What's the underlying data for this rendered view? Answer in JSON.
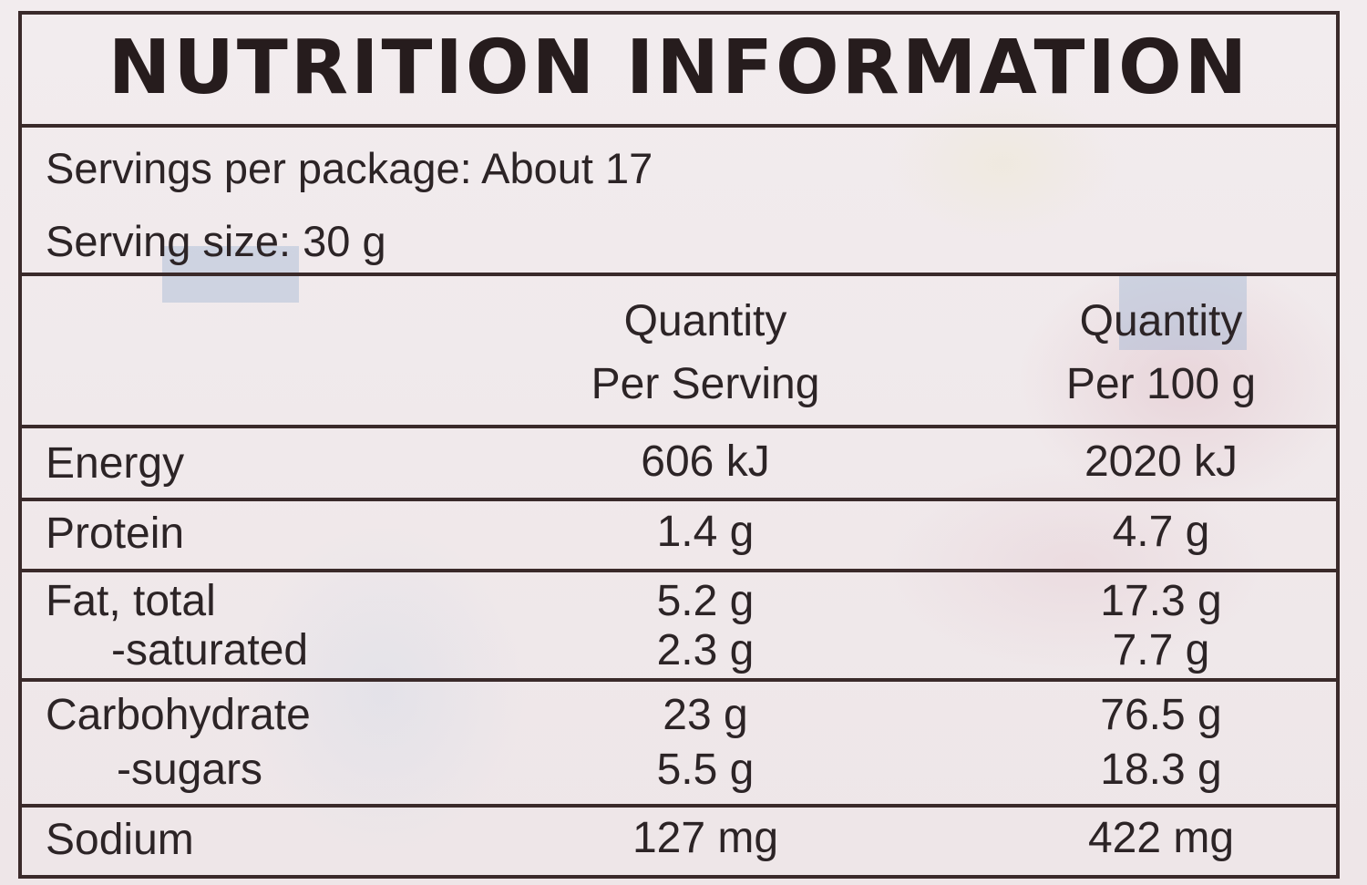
{
  "title": "NUTRITION INFORMATION",
  "servings_per_package": "Servings per package: About 17",
  "serving_size": "Serving size: 30 g",
  "columns": {
    "per_serving": [
      "Quantity",
      "Per Serving"
    ],
    "per_100g": [
      "Quantity",
      "Per 100 g"
    ]
  },
  "rows": [
    {
      "label": "Energy",
      "per_serving": "606 kJ",
      "per_100g": "2020 kJ"
    },
    {
      "label": "Protein",
      "per_serving": "1.4 g",
      "per_100g": "4.7 g"
    },
    {
      "label": "Fat, total",
      "per_serving": "5.2 g",
      "per_100g": "17.3 g"
    },
    {
      "label": "-saturated",
      "per_serving": "2.3 g",
      "per_100g": "7.7 g"
    },
    {
      "label": "Carbohydrate",
      "per_serving": "23 g",
      "per_100g": "76.5 g"
    },
    {
      "label": "-sugars",
      "per_serving": "5.5 g",
      "per_100g": "18.3 g"
    },
    {
      "label": "Sodium",
      "per_serving": "127 mg",
      "per_100g": "422 mg"
    }
  ],
  "colors": {
    "border": "#3a2a2a",
    "text": "#2c2426",
    "background": "#efe8ea"
  }
}
